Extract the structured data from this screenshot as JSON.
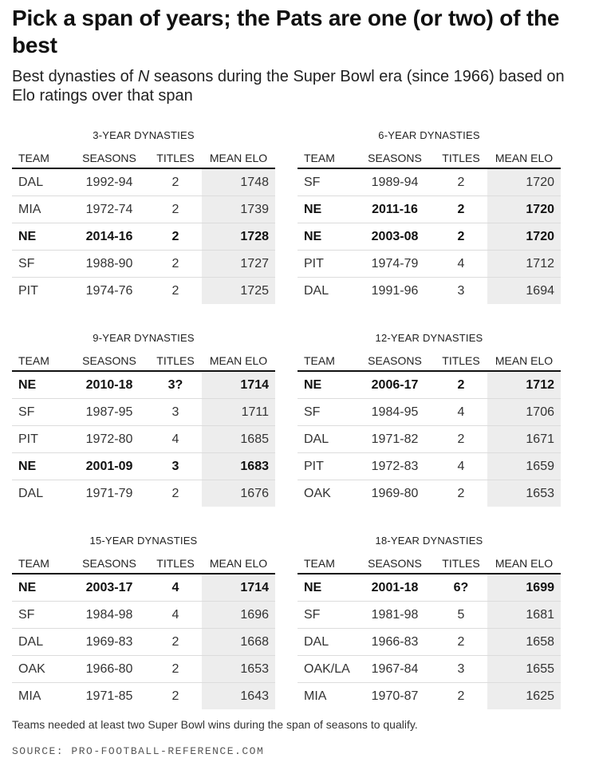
{
  "title": "Pick a span of years; the Pats are one (or two) of the best",
  "subtitle": {
    "before": "Best dynasties of ",
    "n": "N",
    "after": " seasons during the Super Bowl era (since 1966) based on Elo ratings over that span"
  },
  "columns": {
    "team": "TEAM",
    "seasons": "SEASONS",
    "titles": "TITLES",
    "elo": "MEAN ELO"
  },
  "panels": [
    {
      "title": "3-YEAR DYNASTIES",
      "rows": [
        {
          "team": "DAL",
          "seasons": "1992-94",
          "titles": "2",
          "elo": "1748",
          "bold": false
        },
        {
          "team": "MIA",
          "seasons": "1972-74",
          "titles": "2",
          "elo": "1739",
          "bold": false
        },
        {
          "team": "NE",
          "seasons": "2014-16",
          "titles": "2",
          "elo": "1728",
          "bold": true
        },
        {
          "team": "SF",
          "seasons": "1988-90",
          "titles": "2",
          "elo": "1727",
          "bold": false
        },
        {
          "team": "PIT",
          "seasons": "1974-76",
          "titles": "2",
          "elo": "1725",
          "bold": false
        }
      ]
    },
    {
      "title": "6-YEAR DYNASTIES",
      "rows": [
        {
          "team": "SF",
          "seasons": "1989-94",
          "titles": "2",
          "elo": "1720",
          "bold": false
        },
        {
          "team": "NE",
          "seasons": "2011-16",
          "titles": "2",
          "elo": "1720",
          "bold": true
        },
        {
          "team": "NE",
          "seasons": "2003-08",
          "titles": "2",
          "elo": "1720",
          "bold": true
        },
        {
          "team": "PIT",
          "seasons": "1974-79",
          "titles": "4",
          "elo": "1712",
          "bold": false
        },
        {
          "team": "DAL",
          "seasons": "1991-96",
          "titles": "3",
          "elo": "1694",
          "bold": false
        }
      ]
    },
    {
      "title": "9-YEAR DYNASTIES",
      "rows": [
        {
          "team": "NE",
          "seasons": "2010-18",
          "titles": "3?",
          "elo": "1714",
          "bold": true
        },
        {
          "team": "SF",
          "seasons": "1987-95",
          "titles": "3",
          "elo": "1711",
          "bold": false
        },
        {
          "team": "PIT",
          "seasons": "1972-80",
          "titles": "4",
          "elo": "1685",
          "bold": false
        },
        {
          "team": "NE",
          "seasons": "2001-09",
          "titles": "3",
          "elo": "1683",
          "bold": true
        },
        {
          "team": "DAL",
          "seasons": "1971-79",
          "titles": "2",
          "elo": "1676",
          "bold": false
        }
      ]
    },
    {
      "title": "12-YEAR DYNASTIES",
      "rows": [
        {
          "team": "NE",
          "seasons": "2006-17",
          "titles": "2",
          "elo": "1712",
          "bold": true
        },
        {
          "team": "SF",
          "seasons": "1984-95",
          "titles": "4",
          "elo": "1706",
          "bold": false
        },
        {
          "team": "DAL",
          "seasons": "1971-82",
          "titles": "2",
          "elo": "1671",
          "bold": false
        },
        {
          "team": "PIT",
          "seasons": "1972-83",
          "titles": "4",
          "elo": "1659",
          "bold": false
        },
        {
          "team": "OAK",
          "seasons": "1969-80",
          "titles": "2",
          "elo": "1653",
          "bold": false
        }
      ]
    },
    {
      "title": "15-YEAR DYNASTIES",
      "rows": [
        {
          "team": "NE",
          "seasons": "2003-17",
          "titles": "4",
          "elo": "1714",
          "bold": true
        },
        {
          "team": "SF",
          "seasons": "1984-98",
          "titles": "4",
          "elo": "1696",
          "bold": false
        },
        {
          "team": "DAL",
          "seasons": "1969-83",
          "titles": "2",
          "elo": "1668",
          "bold": false
        },
        {
          "team": "OAK",
          "seasons": "1966-80",
          "titles": "2",
          "elo": "1653",
          "bold": false
        },
        {
          "team": "MIA",
          "seasons": "1971-85",
          "titles": "2",
          "elo": "1643",
          "bold": false
        }
      ]
    },
    {
      "title": "18-YEAR DYNASTIES",
      "rows": [
        {
          "team": "NE",
          "seasons": "2001-18",
          "titles": "6?",
          "elo": "1699",
          "bold": true
        },
        {
          "team": "SF",
          "seasons": "1981-98",
          "titles": "5",
          "elo": "1681",
          "bold": false
        },
        {
          "team": "DAL",
          "seasons": "1966-83",
          "titles": "2",
          "elo": "1658",
          "bold": false
        },
        {
          "team": "OAK/LA",
          "seasons": "1967-84",
          "titles": "3",
          "elo": "1655",
          "bold": false
        },
        {
          "team": "MIA",
          "seasons": "1970-87",
          "titles": "2",
          "elo": "1625",
          "bold": false
        }
      ]
    }
  ],
  "note": "Teams needed at least two Super Bowl wins during the span of seasons to qualify.",
  "source": "SOURCE: PRO-FOOTBALL-REFERENCE.COM"
}
